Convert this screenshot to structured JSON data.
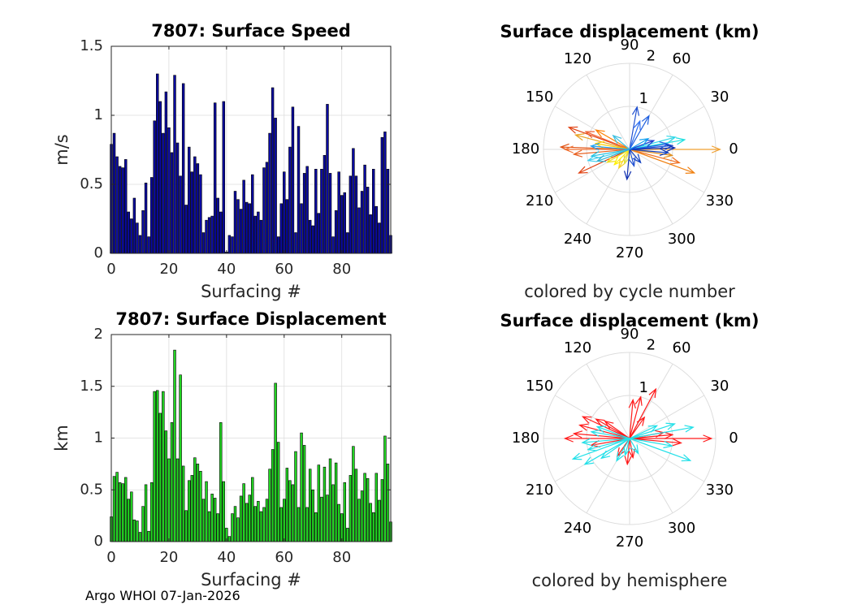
{
  "footer": {
    "text": "Argo WHOI 07-Jan-2026"
  },
  "colors": {
    "speed_bar": "#0a0aa0",
    "disp_bar": "#22d422",
    "grid": "#dddddd",
    "axis": "#262626",
    "north": "#ff1a1a",
    "south": "#22e0e8"
  },
  "chart_data": [
    {
      "type": "bar",
      "title": "7807: Surface Speed",
      "xlabel": "Surfacing #",
      "ylabel": "m/s",
      "xlim": [
        0,
        97
      ],
      "ylim": [
        0,
        1.5
      ],
      "xticks": [
        0,
        20,
        40,
        60,
        80
      ],
      "yticks": [
        0,
        0.5,
        1,
        1.5
      ],
      "x_start": 0,
      "values": [
        0.79,
        0.87,
        0.7,
        0.63,
        0.62,
        0.68,
        0.3,
        0.25,
        0.4,
        0.22,
        0.13,
        0.31,
        0.51,
        0.12,
        0.55,
        0.96,
        1.3,
        1.1,
        0.87,
        1.17,
        0.91,
        0.73,
        1.29,
        0.8,
        0.56,
        1.23,
        0.35,
        0.77,
        0.59,
        0.7,
        0.65,
        0.57,
        0.15,
        0.24,
        0.26,
        0.27,
        1.09,
        0.4,
        0.3,
        1.1,
        0.01,
        0.13,
        0.12,
        0.45,
        0.39,
        0.32,
        0.53,
        0.37,
        0.36,
        0.57,
        0.27,
        0.3,
        0.24,
        0.62,
        0.66,
        0.87,
        1.2,
        0.98,
        0.12,
        0.36,
        0.59,
        0.39,
        0.77,
        1.06,
        0.15,
        0.92,
        0.36,
        0.58,
        0.63,
        0.24,
        0.2,
        0.61,
        0.29,
        0.61,
        0.71,
        1.08,
        0.58,
        0.12,
        0.31,
        0.59,
        0.42,
        0.44,
        0.15,
        0.56,
        0.76,
        0.56,
        0.33,
        0.45,
        0.64,
        0.48,
        0.28,
        0.61,
        0.34,
        0.22,
        0.84,
        0.88,
        0.61,
        0.13
      ]
    },
    {
      "type": "bar",
      "title": "7807: Surface Displacement",
      "xlabel": "Surfacing #",
      "ylabel": "km",
      "xlim": [
        0,
        97
      ],
      "ylim": [
        0,
        2
      ],
      "xticks": [
        0,
        20,
        40,
        60,
        80
      ],
      "yticks": [
        0,
        0.5,
        1,
        1.5,
        2
      ],
      "x_start": 0,
      "values": [
        0.24,
        0.63,
        0.67,
        0.57,
        0.56,
        0.62,
        0.41,
        0.48,
        0.21,
        0.2,
        0.09,
        0.34,
        0.55,
        0.1,
        0.57,
        1.45,
        1.46,
        1.24,
        1.45,
        1.07,
        0.8,
        1.15,
        1.85,
        0.8,
        1.61,
        0.73,
        0.3,
        0.59,
        0.64,
        0.81,
        0.75,
        0.68,
        0.41,
        0.58,
        0.29,
        0.46,
        0.42,
        0.27,
        1.15,
        0.58,
        0.13,
        0.05,
        0.27,
        0.34,
        0.23,
        0.44,
        0.56,
        0.37,
        0.45,
        0.62,
        0.34,
        0.39,
        0.29,
        0.33,
        0.41,
        0.7,
        0.89,
        1.53,
        0.96,
        0.33,
        0.41,
        0.71,
        0.59,
        0.55,
        0.87,
        0.33,
        1.05,
        0.93,
        0.33,
        0.7,
        0.5,
        0.28,
        0.74,
        0.43,
        0.72,
        0.45,
        0.8,
        0.55,
        0.76,
        0.36,
        0.27,
        0.57,
        0.13,
        0.64,
        0.92,
        0.7,
        0.41,
        0.49,
        0.66,
        0.61,
        0.37,
        0.28,
        0.66,
        0.4,
        0.6,
        1.02,
        0.75,
        0.19
      ]
    },
    {
      "type": "polar-compass",
      "title": "Surface displacement (km)",
      "caption": "colored by cycle number",
      "rmax": 2,
      "rticks": [
        1,
        2
      ],
      "angle_ticks": [
        0,
        30,
        60,
        90,
        120,
        150,
        180,
        210,
        240,
        270,
        300,
        330
      ],
      "arrows": [
        {
          "angle": 0,
          "r": 2.1,
          "color": "#f0a030"
        },
        {
          "angle": 345,
          "r": 1.2,
          "color": "#f07020"
        },
        {
          "angle": 340,
          "r": 1.6,
          "color": "#f08010"
        },
        {
          "angle": 352,
          "r": 1.0,
          "color": "#e09020"
        },
        {
          "angle": 178,
          "r": 1.6,
          "color": "#e05010"
        },
        {
          "angle": 180,
          "r": 1.5,
          "color": "#f07030"
        },
        {
          "angle": 185,
          "r": 1.3,
          "color": "#e86020"
        },
        {
          "angle": 160,
          "r": 1.5,
          "color": "#e04010"
        },
        {
          "angle": 158,
          "r": 1.1,
          "color": "#f06030"
        },
        {
          "angle": 165,
          "r": 1.3,
          "color": "#e8a020"
        },
        {
          "angle": 150,
          "r": 0.9,
          "color": "#ff8000"
        },
        {
          "angle": 170,
          "r": 0.8,
          "color": "#ffd000"
        },
        {
          "angle": 205,
          "r": 1.3,
          "color": "#e04010"
        },
        {
          "angle": 210,
          "r": 0.6,
          "color": "#f0e020"
        },
        {
          "angle": 225,
          "r": 0.5,
          "color": "#fff000"
        },
        {
          "angle": 240,
          "r": 0.5,
          "color": "#f8d020"
        },
        {
          "angle": 250,
          "r": 0.35,
          "color": "#e0e040"
        },
        {
          "angle": 190,
          "r": 0.9,
          "color": "#20c0e0"
        },
        {
          "angle": 195,
          "r": 1.0,
          "color": "#40d0f0"
        },
        {
          "angle": 200,
          "r": 0.8,
          "color": "#30b0d0"
        },
        {
          "angle": 175,
          "r": 0.9,
          "color": "#20a0f0"
        },
        {
          "angle": 10,
          "r": 1.3,
          "color": "#20e0e0"
        },
        {
          "angle": 15,
          "r": 1.1,
          "color": "#30d8e8"
        },
        {
          "angle": 5,
          "r": 1.0,
          "color": "#2050d0"
        },
        {
          "angle": 8,
          "r": 0.9,
          "color": "#2060e0"
        },
        {
          "angle": 2,
          "r": 1.05,
          "color": "#1030b0"
        },
        {
          "angle": 355,
          "r": 0.9,
          "color": "#1040c0"
        },
        {
          "angle": 20,
          "r": 0.6,
          "color": "#2040d0"
        },
        {
          "angle": 60,
          "r": 0.9,
          "color": "#2060e0"
        },
        {
          "angle": 80,
          "r": 1.0,
          "color": "#2050d0"
        },
        {
          "angle": 70,
          "r": 0.7,
          "color": "#3070f0"
        },
        {
          "angle": 265,
          "r": 0.7,
          "color": "#1030b0"
        },
        {
          "angle": 285,
          "r": 0.4,
          "color": "#2050d0"
        },
        {
          "angle": 310,
          "r": 0.4,
          "color": "#1040c0"
        },
        {
          "angle": 140,
          "r": 0.5,
          "color": "#40c0e0"
        },
        {
          "angle": 30,
          "r": 0.5,
          "color": "#10a0f0"
        }
      ]
    },
    {
      "type": "polar-compass",
      "title": "Surface displacement (km)",
      "caption": "colored by hemisphere",
      "rmax": 2,
      "rticks": [
        1,
        2
      ],
      "angle_ticks": [
        0,
        30,
        60,
        90,
        120,
        150,
        180,
        210,
        240,
        270,
        300,
        330
      ],
      "arrows": [
        {
          "angle": 0,
          "r": 1.9,
          "color": "#ff1a1a"
        },
        {
          "angle": 5,
          "r": 1.0,
          "color": "#ff1a1a"
        },
        {
          "angle": 355,
          "r": 1.2,
          "color": "#ff1a1a"
        },
        {
          "angle": 175,
          "r": 1.3,
          "color": "#ff1a1a"
        },
        {
          "angle": 180,
          "r": 1.5,
          "color": "#ff1a1a"
        },
        {
          "angle": 165,
          "r": 1.2,
          "color": "#ff1a1a"
        },
        {
          "angle": 155,
          "r": 1.2,
          "color": "#ff1a1a"
        },
        {
          "angle": 150,
          "r": 0.9,
          "color": "#ff1a1a"
        },
        {
          "angle": 145,
          "r": 0.7,
          "color": "#ff1a1a"
        },
        {
          "angle": 62,
          "r": 1.3,
          "color": "#ff1a1a"
        },
        {
          "angle": 75,
          "r": 1.0,
          "color": "#ff1a1a"
        },
        {
          "angle": 85,
          "r": 0.9,
          "color": "#ff1a1a"
        },
        {
          "angle": 55,
          "r": 0.6,
          "color": "#ff1a1a"
        },
        {
          "angle": 10,
          "r": 0.8,
          "color": "#ff1a1a"
        },
        {
          "angle": 190,
          "r": 0.9,
          "color": "#ff1a1a"
        },
        {
          "angle": 235,
          "r": 0.5,
          "color": "#ff1a1a"
        },
        {
          "angle": 265,
          "r": 0.6,
          "color": "#ff1a1a"
        },
        {
          "angle": 280,
          "r": 0.45,
          "color": "#ff1a1a"
        },
        {
          "angle": 200,
          "r": 1.4,
          "color": "#22e0e8"
        },
        {
          "angle": 210,
          "r": 1.2,
          "color": "#22e0e8"
        },
        {
          "angle": 215,
          "r": 0.8,
          "color": "#22e0e8"
        },
        {
          "angle": 195,
          "r": 1.0,
          "color": "#22e0e8"
        },
        {
          "angle": 185,
          "r": 1.1,
          "color": "#22e0e8"
        },
        {
          "angle": 170,
          "r": 0.9,
          "color": "#22e0e8"
        },
        {
          "angle": 160,
          "r": 0.8,
          "color": "#22e0e8"
        },
        {
          "angle": 10,
          "r": 1.5,
          "color": "#22e0e8"
        },
        {
          "angle": 18,
          "r": 1.1,
          "color": "#22e0e8"
        },
        {
          "angle": 340,
          "r": 1.5,
          "color": "#22e0e8"
        },
        {
          "angle": 350,
          "r": 1.0,
          "color": "#22e0e8"
        },
        {
          "angle": 240,
          "r": 0.6,
          "color": "#22e0e8"
        },
        {
          "angle": 255,
          "r": 0.4,
          "color": "#22e0e8"
        },
        {
          "angle": 300,
          "r": 0.4,
          "color": "#22e0e8"
        },
        {
          "angle": 25,
          "r": 0.7,
          "color": "#22e0e8"
        }
      ]
    }
  ]
}
